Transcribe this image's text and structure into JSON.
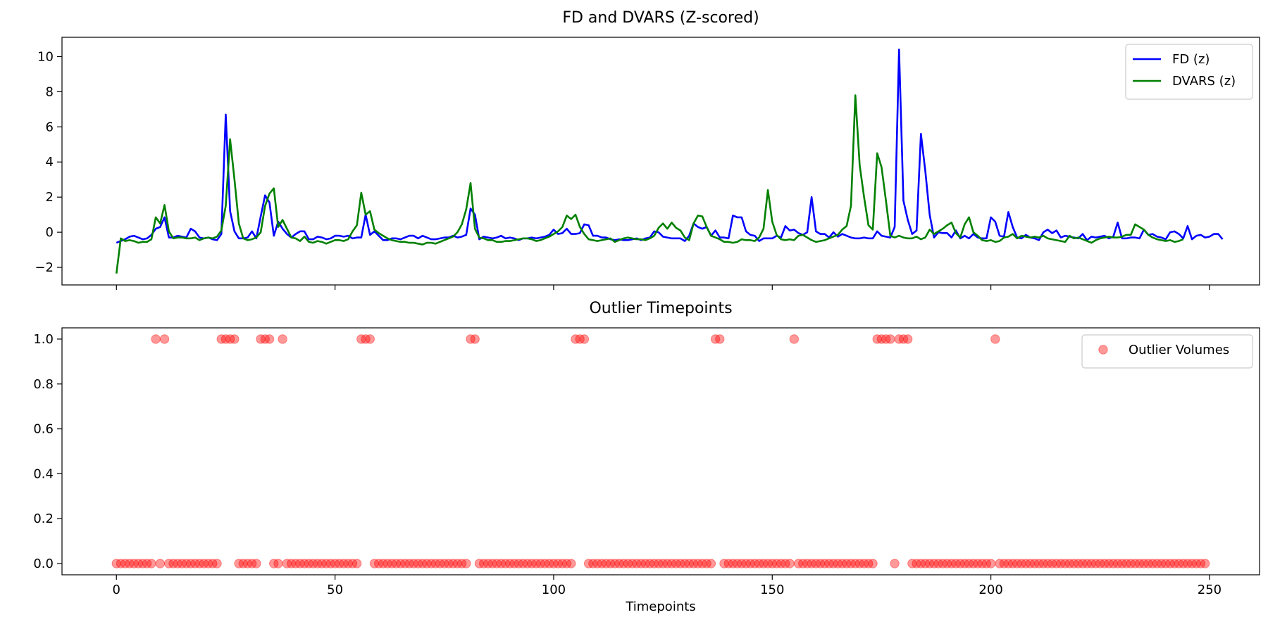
{
  "chart_data": [
    {
      "type": "line",
      "title": "FD and DVARS (Z-scored)",
      "xlabel": "",
      "ylabel": "",
      "xlim": [
        -12.45,
        261.45
      ],
      "ylim": [
        -3.0,
        11.1
      ],
      "xticks": [
        0,
        50,
        100,
        150,
        200,
        250
      ],
      "yticks": [
        -2,
        0,
        2,
        4,
        6,
        8,
        10
      ],
      "ytick_labels": [
        "−2",
        "0",
        "2",
        "4",
        "6",
        "8",
        "10"
      ],
      "legend_position": "top-right",
      "series": [
        {
          "name": "FD (z)",
          "color": "#0000ff",
          "x_start": 0,
          "values": [
            -0.6,
            -0.5,
            -0.4,
            -0.25,
            -0.2,
            -0.3,
            -0.4,
            -0.35,
            -0.15,
            0.2,
            0.3,
            0.85,
            -0.3,
            -0.3,
            -0.2,
            -0.25,
            -0.3,
            0.2,
            0.05,
            -0.3,
            -0.35,
            -0.3,
            -0.4,
            -0.45,
            -0.1,
            6.7,
            1.2,
            0.05,
            -0.35,
            -0.35,
            -0.3,
            0.05,
            -0.35,
            0.9,
            2.1,
            1.7,
            -0.2,
            0.6,
            0.2,
            -0.1,
            -0.3,
            -0.1,
            0.05,
            0.05,
            -0.4,
            -0.4,
            -0.25,
            -0.3,
            -0.4,
            -0.35,
            -0.2,
            -0.2,
            -0.25,
            -0.2,
            -0.35,
            -0.3,
            -0.3,
            1.0,
            -0.15,
            0.05,
            -0.2,
            -0.45,
            -0.45,
            -0.35,
            -0.35,
            -0.4,
            -0.3,
            -0.2,
            -0.2,
            -0.35,
            -0.2,
            -0.3,
            -0.4,
            -0.4,
            -0.35,
            -0.3,
            -0.3,
            -0.2,
            -0.3,
            -0.25,
            -0.15,
            1.35,
            1.0,
            -0.4,
            -0.25,
            -0.3,
            -0.35,
            -0.3,
            -0.2,
            -0.35,
            -0.3,
            -0.35,
            -0.45,
            -0.35,
            -0.35,
            -0.3,
            -0.35,
            -0.3,
            -0.25,
            -0.15,
            0.15,
            -0.1,
            -0.05,
            0.2,
            -0.1,
            -0.1,
            -0.05,
            0.45,
            0.4,
            -0.2,
            -0.2,
            -0.3,
            -0.3,
            -0.4,
            -0.45,
            -0.4,
            -0.45,
            -0.45,
            -0.4,
            -0.35,
            -0.45,
            -0.35,
            -0.3,
            0.05,
            0.0,
            -0.25,
            -0.3,
            -0.35,
            -0.35,
            -0.35,
            -0.5,
            -0.2,
            0.5,
            0.3,
            0.2,
            0.3,
            -0.2,
            0.1,
            -0.3,
            -0.3,
            -0.35,
            0.95,
            0.85,
            0.85,
            0.05,
            -0.15,
            -0.2,
            -0.5,
            -0.35,
            -0.35,
            -0.35,
            -0.2,
            -0.3,
            0.35,
            0.1,
            0.15,
            -0.05,
            -0.15,
            0.0,
            2.0,
            0.05,
            -0.1,
            -0.1,
            -0.3,
            0.0,
            -0.25,
            -0.1,
            -0.2,
            -0.3,
            -0.35,
            -0.35,
            -0.3,
            -0.35,
            -0.35,
            0.05,
            -0.2,
            -0.25,
            -0.3,
            0.3,
            10.4,
            1.8,
            0.7,
            -0.1,
            0.1,
            5.6,
            3.5,
            1.0,
            -0.3,
            0.0,
            -0.05,
            -0.05,
            -0.3,
            0.1,
            -0.35,
            -0.2,
            -0.35,
            -0.1,
            -0.3,
            -0.35,
            -0.35,
            0.85,
            0.6,
            -0.2,
            -0.25,
            1.15,
            0.3,
            -0.3,
            -0.35,
            -0.15,
            -0.3,
            -0.35,
            -0.45,
            0.0,
            0.15,
            -0.05,
            0.1,
            -0.3,
            -0.2,
            -0.25,
            -0.3,
            -0.35,
            -0.1,
            -0.45,
            -0.25,
            -0.3,
            -0.25,
            -0.2,
            -0.35,
            -0.25,
            0.55,
            -0.35,
            -0.35,
            -0.3,
            -0.3,
            -0.35,
            0.15,
            -0.15,
            -0.1,
            -0.25,
            -0.3,
            -0.4,
            0.0,
            0.05,
            -0.1,
            -0.35,
            0.35,
            -0.4,
            -0.2,
            -0.15,
            -0.3,
            -0.25,
            -0.1,
            -0.1,
            -0.4
          ]
        },
        {
          "name": "DVARS (z)",
          "color": "#008000",
          "x_start": 0,
          "values": [
            -2.35,
            -0.35,
            -0.5,
            -0.45,
            -0.5,
            -0.6,
            -0.55,
            -0.55,
            -0.4,
            0.85,
            0.5,
            1.55,
            0.05,
            -0.35,
            -0.3,
            -0.3,
            -0.35,
            -0.35,
            -0.3,
            -0.45,
            -0.35,
            -0.3,
            -0.35,
            -0.25,
            0.1,
            1.5,
            5.3,
            3.0,
            0.5,
            -0.35,
            -0.45,
            -0.4,
            -0.3,
            0.0,
            1.5,
            2.2,
            2.5,
            0.3,
            0.7,
            0.2,
            -0.3,
            -0.35,
            -0.5,
            -0.25,
            -0.55,
            -0.6,
            -0.5,
            -0.55,
            -0.65,
            -0.55,
            -0.45,
            -0.45,
            -0.5,
            -0.4,
            0.05,
            0.4,
            2.25,
            1.0,
            1.2,
            0.15,
            -0.05,
            -0.2,
            -0.35,
            -0.45,
            -0.5,
            -0.55,
            -0.55,
            -0.6,
            -0.6,
            -0.65,
            -0.7,
            -0.6,
            -0.6,
            -0.65,
            -0.55,
            -0.45,
            -0.35,
            -0.25,
            0.0,
            0.45,
            1.3,
            2.8,
            0.2,
            -0.3,
            -0.35,
            -0.45,
            -0.45,
            -0.55,
            -0.55,
            -0.5,
            -0.5,
            -0.45,
            -0.4,
            -0.35,
            -0.35,
            -0.4,
            -0.5,
            -0.45,
            -0.35,
            -0.25,
            -0.1,
            0.05,
            0.3,
            0.95,
            0.75,
            1.0,
            0.3,
            -0.1,
            -0.4,
            -0.45,
            -0.5,
            -0.45,
            -0.4,
            -0.35,
            -0.55,
            -0.45,
            -0.35,
            -0.3,
            -0.35,
            -0.4,
            -0.4,
            -0.45,
            -0.35,
            -0.2,
            0.25,
            0.5,
            0.2,
            0.55,
            0.25,
            0.1,
            -0.3,
            -0.45,
            0.5,
            0.95,
            0.9,
            0.3,
            -0.2,
            -0.3,
            -0.4,
            -0.55,
            -0.55,
            -0.6,
            -0.55,
            -0.4,
            -0.45,
            -0.45,
            -0.5,
            -0.3,
            0.2,
            2.4,
            0.6,
            -0.15,
            -0.4,
            -0.45,
            -0.4,
            -0.45,
            -0.2,
            -0.15,
            -0.3,
            -0.45,
            -0.55,
            -0.5,
            -0.45,
            -0.35,
            -0.25,
            -0.15,
            0.15,
            0.35,
            1.5,
            7.8,
            3.8,
            2.0,
            0.4,
            0.15,
            4.5,
            3.7,
            1.8,
            -0.2,
            -0.3,
            -0.2,
            -0.3,
            -0.35,
            -0.35,
            -0.25,
            -0.4,
            -0.3,
            0.15,
            -0.1,
            0.05,
            0.2,
            0.4,
            0.55,
            -0.05,
            -0.3,
            0.45,
            0.85,
            0.0,
            -0.2,
            -0.45,
            -0.5,
            -0.45,
            -0.55,
            -0.5,
            -0.3,
            -0.25,
            -0.1,
            -0.35,
            -0.2,
            -0.25,
            -0.3,
            -0.25,
            -0.3,
            -0.2,
            -0.35,
            -0.4,
            -0.45,
            -0.5,
            -0.55,
            -0.2,
            -0.35,
            -0.3,
            -0.4,
            -0.5,
            -0.6,
            -0.45,
            -0.35,
            -0.3,
            -0.25,
            -0.3,
            -0.3,
            -0.25,
            -0.15,
            -0.15,
            0.45,
            0.3,
            0.15,
            -0.15,
            -0.3,
            -0.4,
            -0.45,
            -0.5,
            -0.45,
            -0.55,
            -0.5,
            -0.4
          ]
        }
      ]
    },
    {
      "type": "scatter",
      "title": "Outlier Timepoints",
      "xlabel": "Timepoints",
      "ylabel": "",
      "xlim": [
        -12.45,
        261.45
      ],
      "ylim": [
        -0.05,
        1.05
      ],
      "xticks": [
        0,
        50,
        100,
        150,
        200,
        250
      ],
      "yticks": [
        0.0,
        0.2,
        0.4,
        0.6,
        0.8,
        1.0
      ],
      "ytick_labels": [
        "0.0",
        "0.2",
        "0.4",
        "0.6",
        "0.8",
        "1.0"
      ],
      "legend_position": "top-right",
      "series": [
        {
          "name": "Outlier Volumes",
          "color": "#ff0000",
          "n_points": 250,
          "outlier_x": [
            9,
            11,
            24,
            25,
            26,
            27,
            33,
            34,
            35,
            38,
            56,
            57,
            58,
            81,
            82,
            105,
            106,
            107,
            137,
            138,
            155,
            174,
            175,
            176,
            177,
            179,
            180,
            181,
            201
          ]
        }
      ]
    }
  ]
}
